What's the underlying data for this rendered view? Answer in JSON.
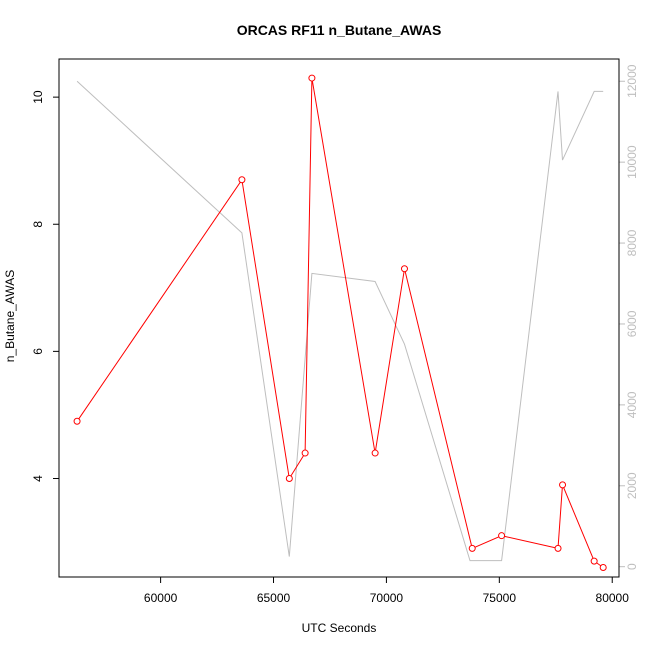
{
  "chart_data": {
    "type": "line",
    "title": "ORCAS RF11 n_Butane_AWAS",
    "xlabel": "UTC Seconds",
    "ylabel": "n_Butane_AWAS",
    "xlim": [
      55500,
      80300
    ],
    "ylim": [
      2.45,
      10.6
    ],
    "y2lim": [
      -255,
      12550
    ],
    "x_ticks": [
      60000,
      65000,
      70000,
      75000,
      80000
    ],
    "y_ticks": [
      4,
      6,
      8,
      10
    ],
    "y2_ticks": [
      0,
      2000,
      4000,
      6000,
      8000,
      10000,
      12000
    ],
    "colors": {
      "primary": "#ff0000",
      "secondary": "#bebebe"
    },
    "series": [
      {
        "color": "#ff0000",
        "axis": "left",
        "marker": "open-circle",
        "x": [
          56300,
          63600,
          65700,
          66400,
          66700,
          69500,
          70800,
          73800,
          75100,
          77600,
          77800,
          79200,
          79600
        ],
        "y": [
          4.9,
          8.7,
          4.0,
          4.4,
          10.3,
          4.4,
          7.3,
          2.9,
          3.1,
          2.9,
          3.9,
          2.7,
          2.6
        ]
      },
      {
        "color": "#bebebe",
        "axis": "right",
        "marker": "none",
        "x": [
          56300,
          63600,
          65700,
          66700,
          69500,
          70800,
          73700,
          75100,
          77600,
          77800,
          79200,
          79600
        ],
        "y": [
          12000,
          8250,
          250,
          7250,
          7050,
          5500,
          150,
          150,
          11750,
          10050,
          11750,
          11750
        ]
      }
    ]
  }
}
